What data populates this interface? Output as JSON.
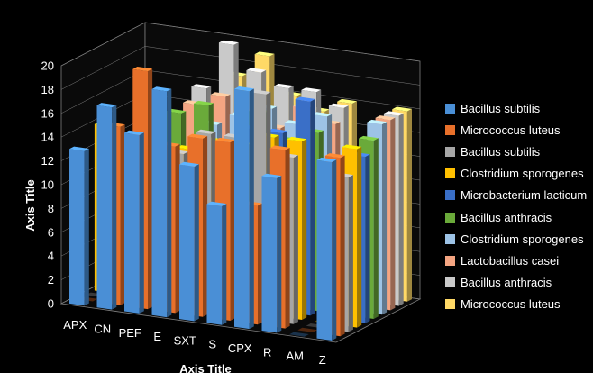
{
  "chart_data": {
    "type": "bar",
    "subtype": "3d-clustered-column",
    "title": "",
    "xlabel": "Axis Title",
    "ylabel": "Axis Title",
    "ylim": [
      0,
      20
    ],
    "yticks": [
      0,
      2,
      4,
      6,
      8,
      10,
      12,
      14,
      16,
      18,
      20
    ],
    "categories": [
      "APX",
      "CN",
      "PEF",
      "E",
      "SXT",
      "S",
      "CPX",
      "R",
      "AM",
      "Z"
    ],
    "grid": false,
    "legend_position": "right",
    "series": [
      {
        "name": "Bacillus subtilis",
        "color": "#4a8fd6",
        "values": [
          13,
          17,
          15,
          19,
          13,
          10,
          20,
          13,
          0,
          15
        ]
      },
      {
        "name": "Micrococcus luteus",
        "color": "#e8702a",
        "values": [
          0,
          15,
          20,
          14,
          15,
          15,
          10,
          15,
          0,
          15
        ]
      },
      {
        "name": "Bacillus subtilis",
        "color": "#a6a6a6",
        "values": [
          0,
          0,
          0,
          13,
          15,
          15,
          19,
          14,
          0,
          13
        ]
      },
      {
        "name": "Clostridium sporogenes",
        "color": "#ffc000",
        "values": [
          14,
          0,
          0,
          13,
          14,
          14,
          15,
          15,
          0,
          15
        ]
      },
      {
        "name": "Microbacterium lacticum",
        "color": "#3a6fc7",
        "values": [
          0,
          0,
          0,
          0,
          13,
          15,
          15,
          18,
          0,
          14
        ]
      },
      {
        "name": "Bacillus anthracis",
        "color": "#6aaa3a",
        "values": [
          0,
          0,
          15,
          16,
          13,
          16,
          14,
          15,
          0,
          15
        ]
      },
      {
        "name": "Clostridium sporogenes",
        "color": "#9dc3e6",
        "values": [
          0,
          0,
          0,
          14,
          15,
          16,
          15,
          16,
          0,
          16
        ]
      },
      {
        "name": "Lactobacillus casei",
        "color": "#f4a582",
        "values": [
          0,
          0,
          15,
          16,
          15,
          14,
          16,
          15,
          0,
          16
        ]
      },
      {
        "name": "Bacillus anthracis",
        "color": "#c9c9c9",
        "values": [
          0,
          0,
          16,
          20,
          18,
          17,
          17,
          16,
          0,
          16
        ]
      },
      {
        "name": "Micrococcus luteus",
        "color": "#ffd966",
        "values": [
          0,
          0,
          0,
          17,
          19,
          16,
          15,
          16,
          0,
          16
        ]
      }
    ]
  }
}
